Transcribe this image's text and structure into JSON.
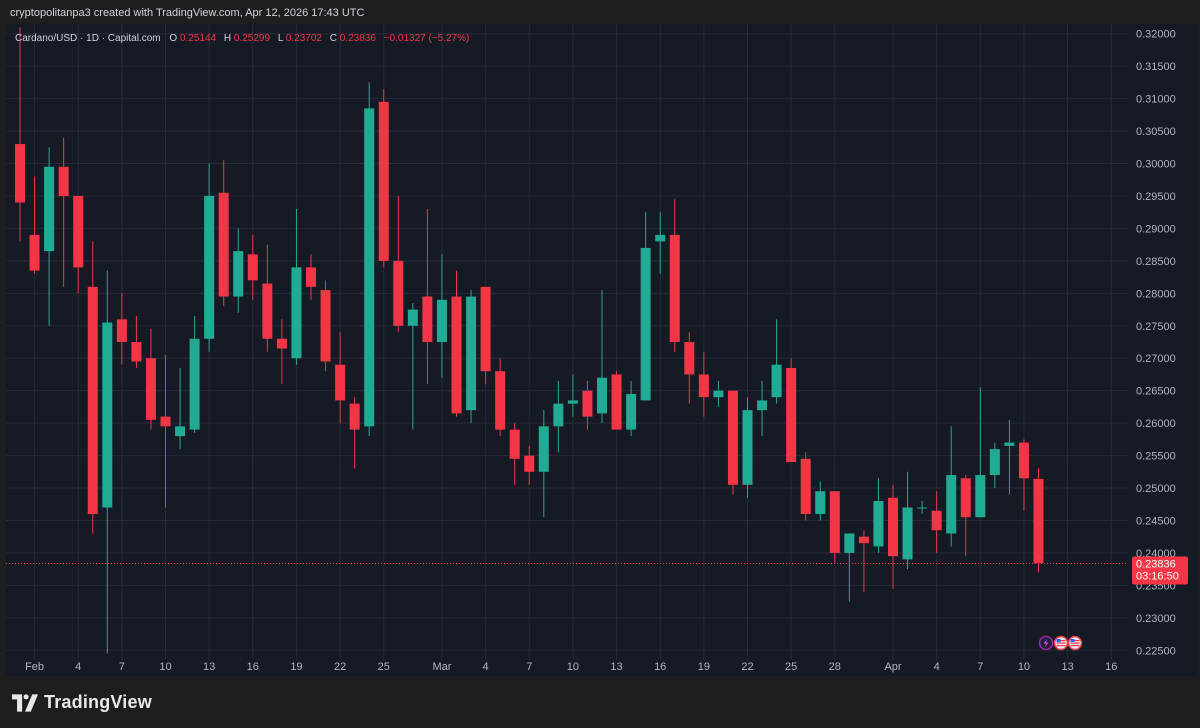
{
  "credit": {
    "text": "cryptopolitanpa3 created with TradingView.com, Apr 12, 2026 17:43 UTC"
  },
  "legend": {
    "symbol": "Cardano/USD · 1D · Capital.com",
    "open_label": "O",
    "open": "0.25144",
    "high_label": "H",
    "high": "0.25299",
    "low_label": "L",
    "low": "0.23702",
    "close_label": "C",
    "close": "0.23836",
    "change": "−0.01327 (−5.27%)"
  },
  "price_tag": {
    "price": "0.23836",
    "countdown": "03:16:50"
  },
  "footer": {
    "brand": "TradingView"
  },
  "colors": {
    "up": "#22ab94",
    "down": "#f23645",
    "background": "#161a25",
    "grid": "#262b38",
    "axis_text": "#b2b5be"
  },
  "chart_data": {
    "type": "candlestick",
    "title": "Cardano/USD · 1D · Capital.com",
    "ylim": [
      0.2235,
      0.3215
    ],
    "y_ticks": [
      "0.32000",
      "0.31500",
      "0.31000",
      "0.30500",
      "0.30000",
      "0.29500",
      "0.29000",
      "0.28500",
      "0.28000",
      "0.27500",
      "0.27000",
      "0.26500",
      "0.26000",
      "0.25500",
      "0.25000",
      "0.24500",
      "0.24000",
      "0.23500",
      "0.23000",
      "0.22500"
    ],
    "x_ticks": [
      {
        "label": "Feb",
        "index": 1
      },
      {
        "label": "4",
        "index": 4
      },
      {
        "label": "7",
        "index": 7
      },
      {
        "label": "10",
        "index": 10
      },
      {
        "label": "13",
        "index": 13
      },
      {
        "label": "16",
        "index": 16
      },
      {
        "label": "19",
        "index": 19
      },
      {
        "label": "22",
        "index": 22
      },
      {
        "label": "25",
        "index": 25
      },
      {
        "label": "Mar",
        "index": 29
      },
      {
        "label": "4",
        "index": 32
      },
      {
        "label": "7",
        "index": 35
      },
      {
        "label": "10",
        "index": 38
      },
      {
        "label": "13",
        "index": 41
      },
      {
        "label": "16",
        "index": 44
      },
      {
        "label": "19",
        "index": 47
      },
      {
        "label": "22",
        "index": 50
      },
      {
        "label": "25",
        "index": 53
      },
      {
        "label": "28",
        "index": 56
      },
      {
        "label": "Apr",
        "index": 60
      },
      {
        "label": "4",
        "index": 63
      },
      {
        "label": "7",
        "index": 66
      },
      {
        "label": "10",
        "index": 69
      },
      {
        "label": "13",
        "index": 72
      },
      {
        "label": "16",
        "index": 75
      }
    ],
    "last_price": 0.23836,
    "candles": [
      {
        "o": 0.303,
        "h": 0.321,
        "l": 0.288,
        "c": 0.294
      },
      {
        "o": 0.289,
        "h": 0.298,
        "l": 0.283,
        "c": 0.2835
      },
      {
        "o": 0.2865,
        "h": 0.3025,
        "l": 0.275,
        "c": 0.2995
      },
      {
        "o": 0.2995,
        "h": 0.304,
        "l": 0.281,
        "c": 0.295
      },
      {
        "o": 0.295,
        "h": 0.295,
        "l": 0.28,
        "c": 0.284
      },
      {
        "o": 0.281,
        "h": 0.288,
        "l": 0.243,
        "c": 0.246
      },
      {
        "o": 0.247,
        "h": 0.2835,
        "l": 0.2245,
        "c": 0.2755
      },
      {
        "o": 0.276,
        "h": 0.28,
        "l": 0.269,
        "c": 0.2725
      },
      {
        "o": 0.2725,
        "h": 0.2765,
        "l": 0.2685,
        "c": 0.2695
      },
      {
        "o": 0.27,
        "h": 0.2745,
        "l": 0.259,
        "c": 0.2605
      },
      {
        "o": 0.261,
        "h": 0.2705,
        "l": 0.247,
        "c": 0.2595
      },
      {
        "o": 0.258,
        "h": 0.2685,
        "l": 0.256,
        "c": 0.2595
      },
      {
        "o": 0.259,
        "h": 0.2765,
        "l": 0.2585,
        "c": 0.273
      },
      {
        "o": 0.273,
        "h": 0.3,
        "l": 0.271,
        "c": 0.295
      },
      {
        "o": 0.2955,
        "h": 0.3005,
        "l": 0.278,
        "c": 0.2795
      },
      {
        "o": 0.2795,
        "h": 0.29,
        "l": 0.277,
        "c": 0.2865
      },
      {
        "o": 0.286,
        "h": 0.289,
        "l": 0.279,
        "c": 0.282
      },
      {
        "o": 0.2815,
        "h": 0.2875,
        "l": 0.271,
        "c": 0.273
      },
      {
        "o": 0.273,
        "h": 0.276,
        "l": 0.266,
        "c": 0.2715
      },
      {
        "o": 0.27,
        "h": 0.293,
        "l": 0.269,
        "c": 0.284
      },
      {
        "o": 0.284,
        "h": 0.286,
        "l": 0.279,
        "c": 0.281
      },
      {
        "o": 0.2805,
        "h": 0.282,
        "l": 0.268,
        "c": 0.2695
      },
      {
        "o": 0.269,
        "h": 0.274,
        "l": 0.26,
        "c": 0.2635
      },
      {
        "o": 0.263,
        "h": 0.264,
        "l": 0.253,
        "c": 0.259
      },
      {
        "o": 0.2595,
        "h": 0.3125,
        "l": 0.258,
        "c": 0.3085
      },
      {
        "o": 0.3095,
        "h": 0.3115,
        "l": 0.284,
        "c": 0.285
      },
      {
        "o": 0.285,
        "h": 0.295,
        "l": 0.274,
        "c": 0.275
      },
      {
        "o": 0.275,
        "h": 0.2785,
        "l": 0.259,
        "c": 0.2775
      },
      {
        "o": 0.2795,
        "h": 0.293,
        "l": 0.266,
        "c": 0.2725
      },
      {
        "o": 0.2725,
        "h": 0.286,
        "l": 0.267,
        "c": 0.279
      },
      {
        "o": 0.2795,
        "h": 0.2835,
        "l": 0.261,
        "c": 0.2615
      },
      {
        "o": 0.262,
        "h": 0.2805,
        "l": 0.26,
        "c": 0.2795
      },
      {
        "o": 0.281,
        "h": 0.281,
        "l": 0.266,
        "c": 0.268
      },
      {
        "o": 0.268,
        "h": 0.27,
        "l": 0.258,
        "c": 0.259
      },
      {
        "o": 0.259,
        "h": 0.26,
        "l": 0.2505,
        "c": 0.2545
      },
      {
        "o": 0.255,
        "h": 0.2565,
        "l": 0.2505,
        "c": 0.2525
      },
      {
        "o": 0.2525,
        "h": 0.262,
        "l": 0.2455,
        "c": 0.2595
      },
      {
        "o": 0.2595,
        "h": 0.2665,
        "l": 0.2555,
        "c": 0.263
      },
      {
        "o": 0.263,
        "h": 0.2675,
        "l": 0.261,
        "c": 0.2635
      },
      {
        "o": 0.265,
        "h": 0.2665,
        "l": 0.259,
        "c": 0.261
      },
      {
        "o": 0.2615,
        "h": 0.2805,
        "l": 0.26,
        "c": 0.267
      },
      {
        "o": 0.2675,
        "h": 0.268,
        "l": 0.259,
        "c": 0.259
      },
      {
        "o": 0.259,
        "h": 0.2665,
        "l": 0.258,
        "c": 0.2645
      },
      {
        "o": 0.2635,
        "h": 0.2925,
        "l": 0.2635,
        "c": 0.287
      },
      {
        "o": 0.288,
        "h": 0.2925,
        "l": 0.283,
        "c": 0.289
      },
      {
        "o": 0.289,
        "h": 0.2945,
        "l": 0.271,
        "c": 0.2725
      },
      {
        "o": 0.2725,
        "h": 0.274,
        "l": 0.263,
        "c": 0.2675
      },
      {
        "o": 0.2675,
        "h": 0.271,
        "l": 0.261,
        "c": 0.264
      },
      {
        "o": 0.264,
        "h": 0.2665,
        "l": 0.2625,
        "c": 0.265
      },
      {
        "o": 0.265,
        "h": 0.265,
        "l": 0.249,
        "c": 0.2505
      },
      {
        "o": 0.2505,
        "h": 0.264,
        "l": 0.2485,
        "c": 0.262
      },
      {
        "o": 0.262,
        "h": 0.2665,
        "l": 0.258,
        "c": 0.2635
      },
      {
        "o": 0.264,
        "h": 0.276,
        "l": 0.263,
        "c": 0.269
      },
      {
        "o": 0.2685,
        "h": 0.27,
        "l": 0.254,
        "c": 0.254
      },
      {
        "o": 0.2545,
        "h": 0.2555,
        "l": 0.245,
        "c": 0.246
      },
      {
        "o": 0.246,
        "h": 0.251,
        "l": 0.245,
        "c": 0.2495
      },
      {
        "o": 0.2495,
        "h": 0.2495,
        "l": 0.2385,
        "c": 0.24
      },
      {
        "o": 0.24,
        "h": 0.243,
        "l": 0.2325,
        "c": 0.243
      },
      {
        "o": 0.2425,
        "h": 0.2435,
        "l": 0.234,
        "c": 0.2415
      },
      {
        "o": 0.241,
        "h": 0.2515,
        "l": 0.24,
        "c": 0.248
      },
      {
        "o": 0.2485,
        "h": 0.2505,
        "l": 0.2345,
        "c": 0.2395
      },
      {
        "o": 0.239,
        "h": 0.2525,
        "l": 0.2375,
        "c": 0.247
      },
      {
        "o": 0.247,
        "h": 0.248,
        "l": 0.246,
        "c": 0.247
      },
      {
        "o": 0.2465,
        "h": 0.2495,
        "l": 0.24,
        "c": 0.2435
      },
      {
        "o": 0.243,
        "h": 0.2595,
        "l": 0.241,
        "c": 0.252
      },
      {
        "o": 0.2515,
        "h": 0.252,
        "l": 0.2395,
        "c": 0.2455
      },
      {
        "o": 0.2455,
        "h": 0.2655,
        "l": 0.2455,
        "c": 0.252
      },
      {
        "o": 0.252,
        "h": 0.257,
        "l": 0.25,
        "c": 0.256
      },
      {
        "o": 0.2565,
        "h": 0.2605,
        "l": 0.249,
        "c": 0.257
      },
      {
        "o": 0.257,
        "h": 0.2575,
        "l": 0.2465,
        "c": 0.2515
      },
      {
        "o": 0.2514,
        "h": 0.253,
        "l": 0.237,
        "c": 0.2384
      }
    ]
  }
}
